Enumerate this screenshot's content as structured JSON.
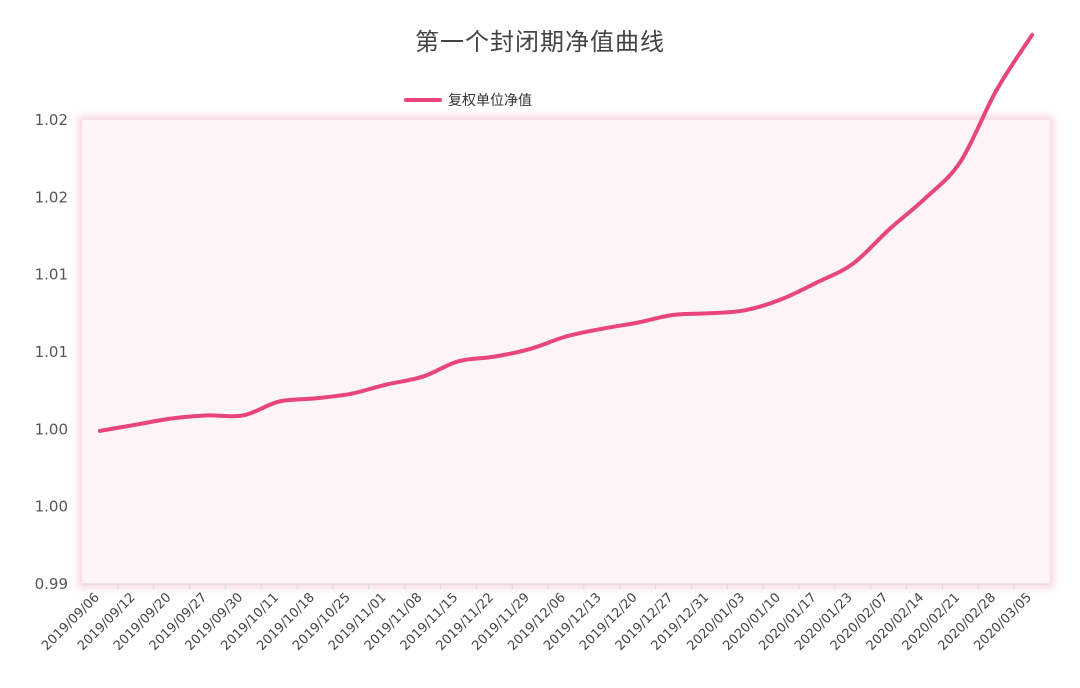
{
  "chart_data": {
    "type": "line",
    "title": "第一个封闭期净值曲线",
    "legend": "top-center",
    "grid": false,
    "ylim": [
      0.99,
      1.02
    ],
    "yticks": [
      "1.02",
      "1.02",
      "1.01",
      "1.01",
      "1.00",
      "1.00",
      "0.99"
    ],
    "ytick_values": [
      1.02,
      1.015,
      1.01,
      1.005,
      1.0,
      0.995,
      0.99
    ],
    "categories": [
      "2019/09/06",
      "2019/09/12",
      "2019/09/20",
      "2019/09/27",
      "2019/09/30",
      "2019/10/11",
      "2019/10/18",
      "2019/10/25",
      "2019/11/01",
      "2019/11/08",
      "2019/11/15",
      "2019/11/22",
      "2019/11/29",
      "2019/12/06",
      "2019/12/13",
      "2019/12/20",
      "2019/12/27",
      "2019/12/31",
      "2020/01/03",
      "2020/01/10",
      "2020/01/17",
      "2020/01/23",
      "2020/02/07",
      "2020/02/14",
      "2020/02/21",
      "2020/02/28",
      "2020/03/05"
    ],
    "series": [
      {
        "name": "复权单位净值",
        "color": "#e8467a",
        "values": [
          0.9999,
          1.0003,
          1.0007,
          1.0009,
          1.0009,
          1.0018,
          1.002,
          1.0023,
          1.0029,
          1.0034,
          1.0044,
          1.0047,
          1.0052,
          1.006,
          1.0065,
          1.0069,
          1.0074,
          1.0075,
          1.0077,
          1.0084,
          1.0095,
          1.0107,
          1.0129,
          1.0149,
          1.0173,
          1.0219,
          1.0255
        ]
      }
    ]
  }
}
